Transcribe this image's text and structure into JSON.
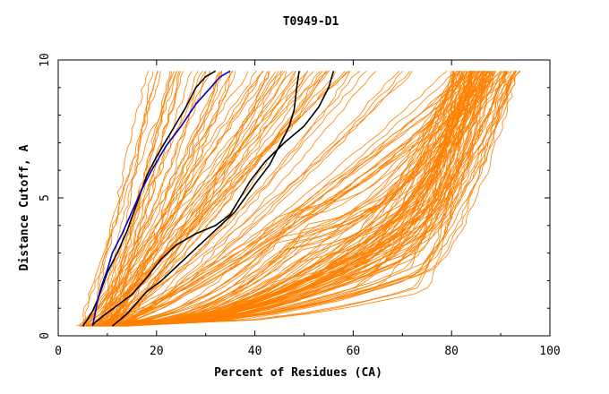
{
  "chart_data": {
    "type": "line",
    "title": "T0949-D1",
    "xlabel": "Percent of Residues (CA)",
    "ylabel": "Distance Cutoff, A",
    "xlim": [
      0,
      100
    ],
    "ylim": [
      0,
      10
    ],
    "x_ticks": [
      0,
      20,
      40,
      60,
      80,
      100
    ],
    "y_ticks": [
      0,
      5,
      10
    ],
    "colors": {
      "background_curves": "#ff8000",
      "highlight_black": "#000000",
      "highlight_blue": "#0000cc"
    },
    "highlight_series": [
      {
        "color": "#000000",
        "points": [
          [
            5,
            0.35
          ],
          [
            6,
            0.6
          ],
          [
            7,
            0.9
          ],
          [
            8,
            1.3
          ],
          [
            9,
            1.8
          ],
          [
            10,
            2.3
          ],
          [
            12,
            3.0
          ],
          [
            14,
            3.8
          ],
          [
            16,
            4.8
          ],
          [
            18,
            5.8
          ],
          [
            20,
            6.5
          ],
          [
            23,
            7.4
          ],
          [
            26,
            8.3
          ],
          [
            28,
            9.0
          ],
          [
            30,
            9.4
          ],
          [
            32,
            9.6
          ]
        ]
      },
      {
        "color": "#0000cc",
        "points": [
          [
            7,
            0.35
          ],
          [
            7.5,
            0.8
          ],
          [
            8,
            1.3
          ],
          [
            9,
            1.9
          ],
          [
            10,
            2.4
          ],
          [
            11,
            3.0
          ],
          [
            13,
            3.7
          ],
          [
            15,
            4.5
          ],
          [
            17,
            5.3
          ],
          [
            19,
            6.0
          ],
          [
            22,
            6.9
          ],
          [
            25,
            7.6
          ],
          [
            28,
            8.4
          ],
          [
            31,
            9.0
          ],
          [
            33,
            9.4
          ],
          [
            35,
            9.6
          ]
        ]
      },
      {
        "color": "#000000",
        "points": [
          [
            11,
            0.35
          ],
          [
            12,
            0.5
          ],
          [
            14,
            0.8
          ],
          [
            16,
            1.2
          ],
          [
            18,
            1.6
          ],
          [
            21,
            2.0
          ],
          [
            24,
            2.5
          ],
          [
            27,
            3.0
          ],
          [
            30,
            3.5
          ],
          [
            33,
            4.0
          ],
          [
            36,
            4.5
          ],
          [
            38,
            5.0
          ],
          [
            40,
            5.5
          ],
          [
            43,
            6.2
          ],
          [
            45,
            6.9
          ],
          [
            47,
            7.6
          ],
          [
            48,
            8.2
          ],
          [
            48.5,
            9.0
          ],
          [
            49,
            9.6
          ]
        ]
      },
      {
        "color": "#000000",
        "points": [
          [
            7,
            0.4
          ],
          [
            9,
            0.7
          ],
          [
            12,
            1.1
          ],
          [
            15,
            1.5
          ],
          [
            18,
            2.1
          ],
          [
            21,
            2.8
          ],
          [
            24,
            3.3
          ],
          [
            28,
            3.7
          ],
          [
            32,
            4.0
          ],
          [
            35,
            4.4
          ],
          [
            37,
            5.0
          ],
          [
            39,
            5.6
          ],
          [
            42,
            6.3
          ],
          [
            46,
            7.0
          ],
          [
            50,
            7.6
          ],
          [
            53,
            8.3
          ],
          [
            55,
            9.0
          ],
          [
            56,
            9.6
          ]
        ]
      }
    ]
  }
}
